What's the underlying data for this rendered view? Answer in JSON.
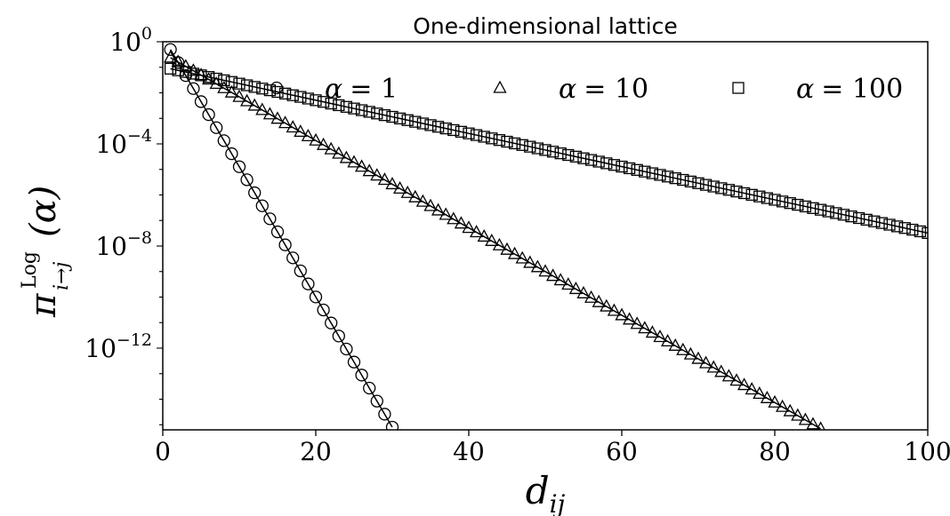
{
  "chart_data": {
    "type": "scatter",
    "title": "One-dimensional lattice",
    "xlabel": "d",
    "xlabel_sub": "ij",
    "ylabel": "π",
    "ylabel_sup": "Log",
    "ylabel_sub": "i→j",
    "ylabel_arg": "(α)",
    "xlim": [
      0,
      100
    ],
    "ylim_log10": [
      -15.2,
      0
    ],
    "y_scale": "log",
    "x_ticks": [
      0,
      20,
      40,
      60,
      80,
      100
    ],
    "x_tick_labels": [
      "0",
      "20",
      "40",
      "60",
      "80",
      "100"
    ],
    "y_ticks_log10": [
      0,
      -4,
      -8,
      -12
    ],
    "y_tick_base": "10",
    "y_tick_exponents": [
      "0",
      "−4",
      "−8",
      "−12"
    ],
    "grid": false,
    "legend_position": "top",
    "series": [
      {
        "name": "α = 1",
        "legend_lhs": "α",
        "legend_rhs": "= 1",
        "marker": "circle",
        "x_range": [
          1,
          30
        ],
        "log10_intercept": 0.205,
        "log10_slope": -0.51
      },
      {
        "name": "α = 10",
        "legend_lhs": "α",
        "legend_rhs": "= 10",
        "marker": "triangle",
        "x_range": [
          1,
          86
        ],
        "log10_intercept": -0.45,
        "log10_slope": -0.171
      },
      {
        "name": "α = 100",
        "legend_lhs": "α",
        "legend_rhs": "= 100",
        "marker": "square",
        "x_range": [
          1,
          100
        ],
        "log10_intercept": -0.99,
        "log10_slope": -0.065
      }
    ]
  }
}
